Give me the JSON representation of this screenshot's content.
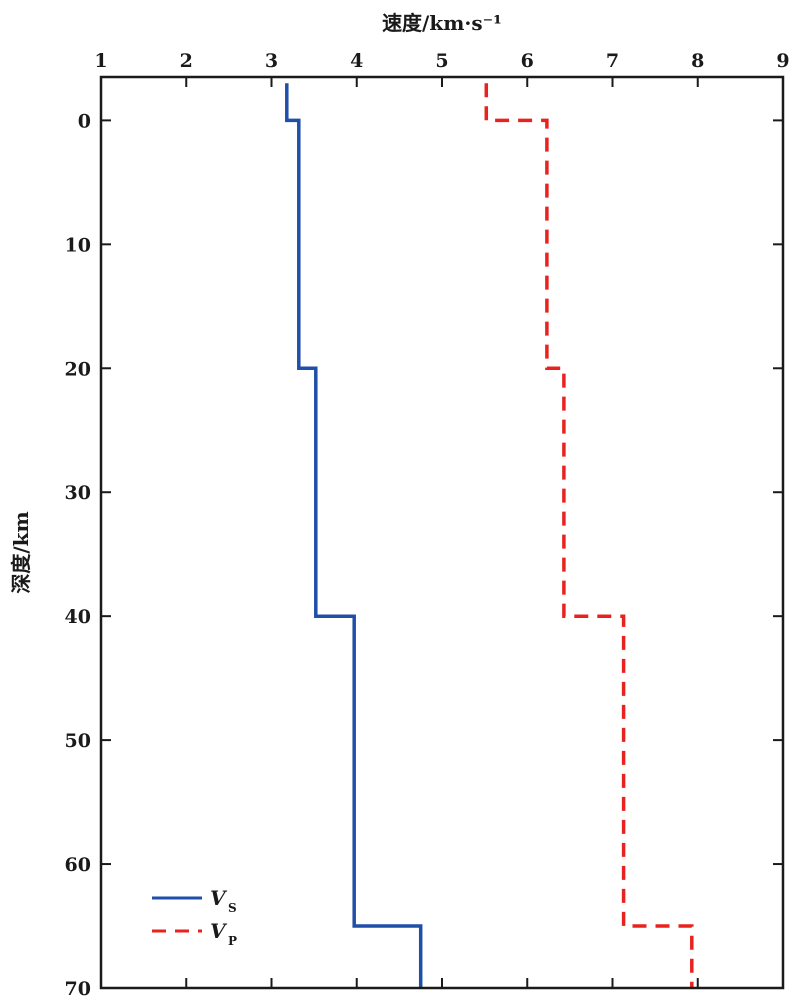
{
  "chart_data": {
    "type": "line",
    "xlabel": "速度/km·s⁻¹",
    "ylabel": "深度/km",
    "xlim": [
      1,
      9
    ],
    "ylim": [
      70,
      -3
    ],
    "y_inverted": true,
    "x_axis_position": "top",
    "xticks": [
      "1",
      "2",
      "3",
      "4",
      "5",
      "6",
      "7",
      "8",
      "9"
    ],
    "yticks": [
      "0",
      "10",
      "20",
      "30",
      "40",
      "50",
      "60",
      "70"
    ],
    "grid": false,
    "legend_position": "bottom-left",
    "series": [
      {
        "name": "V_S",
        "legend_main": "V",
        "legend_sub": "S",
        "color": "#1f4fa8",
        "style": "solid",
        "points": [
          [
            3.18,
            -3
          ],
          [
            3.18,
            0
          ],
          [
            3.32,
            0
          ],
          [
            3.32,
            20
          ],
          [
            3.52,
            20
          ],
          [
            3.52,
            40
          ],
          [
            3.97,
            40
          ],
          [
            3.97,
            65
          ],
          [
            4.75,
            65
          ],
          [
            4.75,
            70
          ]
        ]
      },
      {
        "name": "V_P",
        "legend_main": "V",
        "legend_sub": "P",
        "color": "#e8231f",
        "style": "dashed",
        "points": [
          [
            5.52,
            -3
          ],
          [
            5.52,
            0
          ],
          [
            6.23,
            0
          ],
          [
            6.23,
            20
          ],
          [
            6.43,
            20
          ],
          [
            6.43,
            40
          ],
          [
            7.13,
            40
          ],
          [
            7.13,
            65
          ],
          [
            7.93,
            65
          ],
          [
            7.93,
            70
          ]
        ]
      }
    ]
  }
}
